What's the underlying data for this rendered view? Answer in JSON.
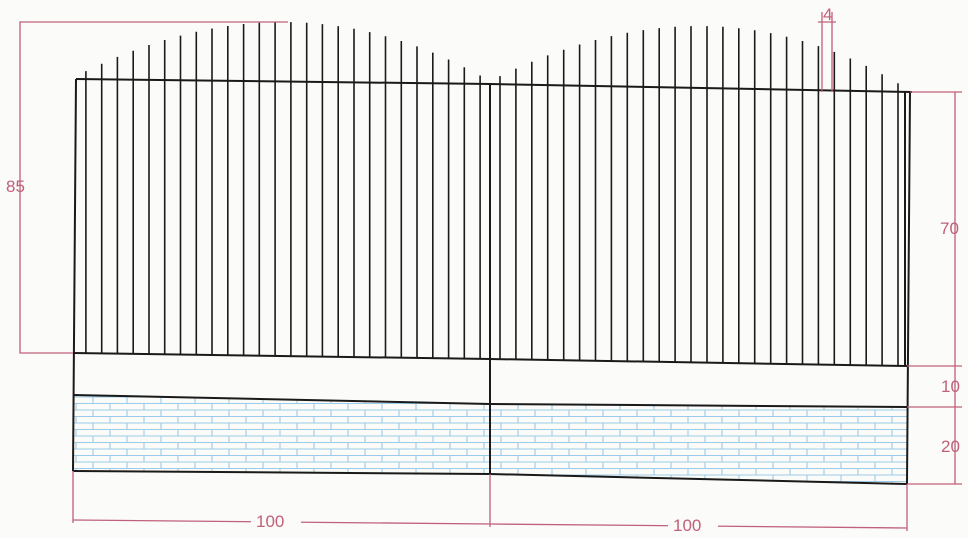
{
  "dimensions": {
    "overall_height": "85",
    "bar_width": "4",
    "fence_height": "70",
    "top_band_height": "10",
    "brick_band_height": "20",
    "panel_left_width": "100",
    "panel_right_width": "100"
  },
  "colors": {
    "line": "#1a1a1a",
    "dimension": "#c0607a",
    "brick": "#9ccbe8",
    "background": "#fbfbf9"
  }
}
